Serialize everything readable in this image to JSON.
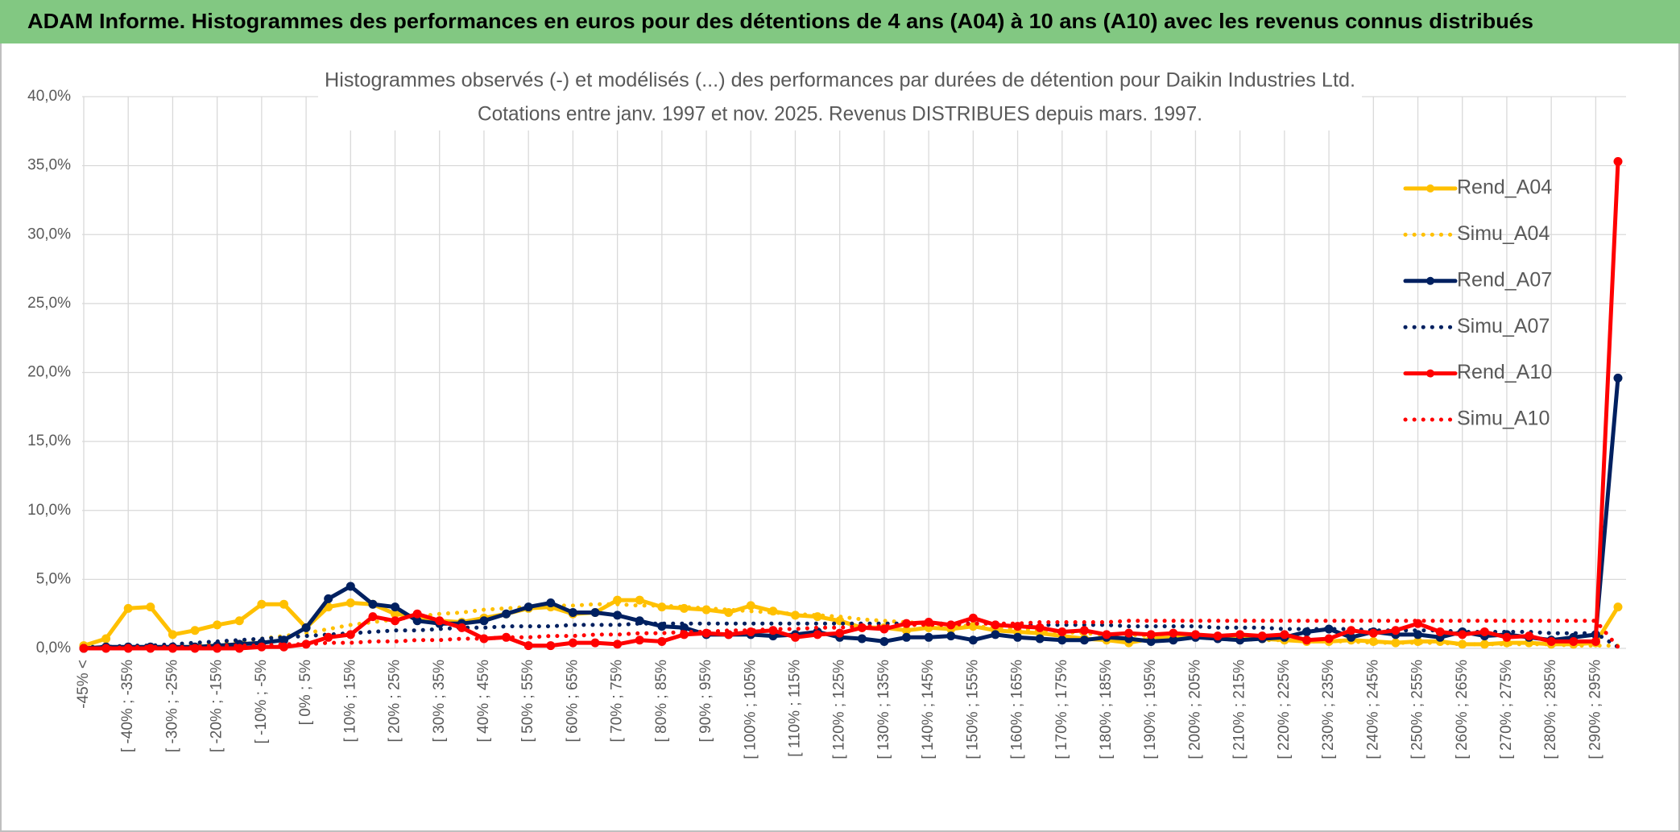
{
  "header": {
    "title": "ADAM Informe. Histogrammes des performances en euros pour des détentions de 4 ans (A04) à 10 ans (A10) avec les revenus connus distribués"
  },
  "chart_data": {
    "type": "line",
    "title": "Histogrammes observés (-) et modélisés (...) des performances par durées de détention pour Daikin Industries Ltd.",
    "subtitle": "Cotations entre janv. 1997 et nov. 2025. Revenus DISTRIBUES depuis mars. 1997.",
    "categories": [
      "-45% <",
      null,
      "[ -40% ; -35%",
      null,
      "[ -30% ; -25%",
      null,
      "[ -20% ; -15%",
      null,
      "[ -10% ; -5%",
      null,
      "[ 0% ; 5%",
      null,
      "[ 10% ; 15%",
      null,
      "[ 20% ; 25%",
      null,
      "[ 30% ; 35%",
      null,
      "[ 40% ; 45%",
      null,
      "[ 50% ; 55%",
      null,
      "[ 60% ; 65%",
      null,
      "[ 70% ; 75%",
      null,
      "[ 80% ; 85%",
      null,
      "[ 90% ; 95%",
      null,
      "[ 100% ; 105%",
      null,
      "[ 110% ; 115%",
      null,
      "[ 120% ; 125%",
      null,
      "[ 130% ; 135%",
      null,
      "[ 140% ; 145%",
      null,
      "[ 150% ; 155%",
      null,
      "[ 160% ; 165%",
      null,
      "[ 170% ; 175%",
      null,
      "[ 180% ; 185%",
      null,
      "[ 190% ; 195%",
      null,
      "[ 200% ; 205%",
      null,
      "[ 210% ; 215%",
      null,
      "[ 220% ; 225%",
      null,
      "[ 230% ; 235%",
      null,
      "[ 240% ; 245%",
      null,
      "[ 250% ; 255%",
      null,
      "[ 260% ; 265%",
      null,
      "[ 270% ; 275%",
      null,
      "[ 280% ; 285%",
      null,
      "[ 290% ; 295%",
      null
    ],
    "series": [
      {
        "name": "Rend_A04",
        "color": "#ffc000",
        "style": "solid",
        "values": [
          0.2,
          0.7,
          2.9,
          3.0,
          1.0,
          1.3,
          1.7,
          2.0,
          3.2,
          3.2,
          1.5,
          3.0,
          3.3,
          3.2,
          2.5,
          2.3,
          2.0,
          1.9,
          2.2,
          2.5,
          2.9,
          3.0,
          2.5,
          2.6,
          3.5,
          3.5,
          3.0,
          2.9,
          2.8,
          2.6,
          3.1,
          2.7,
          2.4,
          2.3,
          2.0,
          1.5,
          1.5,
          1.3,
          1.5,
          1.4,
          1.6,
          1.3,
          1.2,
          1.1,
          0.9,
          0.7,
          0.6,
          0.4,
          0.7,
          0.8,
          0.9,
          0.8,
          0.9,
          0.7,
          0.6,
          0.5,
          0.5,
          0.6,
          0.5,
          0.4,
          0.5,
          0.5,
          0.3,
          0.3,
          0.4,
          0.4,
          0.3,
          0.3,
          0.4,
          3.0
        ]
      },
      {
        "name": "Simu_A04",
        "color": "#ffc000",
        "style": "dotted",
        "values": [
          0.0,
          0.1,
          0.1,
          0.2,
          0.2,
          0.3,
          0.4,
          0.5,
          0.7,
          0.9,
          1.1,
          1.4,
          1.7,
          1.9,
          2.1,
          2.3,
          2.5,
          2.6,
          2.8,
          2.9,
          3.0,
          3.1,
          3.1,
          3.2,
          3.2,
          3.1,
          3.1,
          3.0,
          2.9,
          2.8,
          2.7,
          2.6,
          2.5,
          2.4,
          2.3,
          2.1,
          2.0,
          1.9,
          1.8,
          1.7,
          1.6,
          1.5,
          1.4,
          1.3,
          1.2,
          1.1,
          1.0,
          1.0,
          0.9,
          0.8,
          0.8,
          0.7,
          0.7,
          0.6,
          0.6,
          0.5,
          0.5,
          0.5,
          0.4,
          0.4,
          0.4,
          0.4,
          0.3,
          0.3,
          0.3,
          0.3,
          0.3,
          0.2,
          0.2,
          0.2
        ]
      },
      {
        "name": "Rend_A07",
        "color": "#002060",
        "style": "solid",
        "values": [
          0.0,
          0.1,
          0.1,
          0.1,
          0.1,
          0.1,
          0.2,
          0.3,
          0.4,
          0.6,
          1.5,
          3.6,
          4.5,
          3.2,
          3.0,
          2.0,
          1.8,
          1.8,
          2.0,
          2.5,
          3.0,
          3.3,
          2.6,
          2.6,
          2.4,
          2.0,
          1.6,
          1.5,
          1.0,
          1.0,
          1.0,
          0.9,
          1.0,
          1.2,
          0.8,
          0.7,
          0.5,
          0.8,
          0.8,
          0.9,
          0.6,
          1.0,
          0.8,
          0.7,
          0.6,
          0.6,
          0.8,
          0.7,
          0.5,
          0.6,
          0.8,
          0.7,
          0.6,
          0.7,
          0.8,
          1.2,
          1.4,
          0.8,
          1.2,
          1.0,
          1.0,
          0.8,
          1.2,
          0.9,
          1.0,
          0.8,
          0.6,
          0.8,
          1.0,
          19.6
        ]
      },
      {
        "name": "Simu_A07",
        "color": "#002060",
        "style": "dotted",
        "values": [
          0.1,
          0.1,
          0.2,
          0.2,
          0.3,
          0.4,
          0.5,
          0.6,
          0.7,
          0.8,
          0.9,
          1.0,
          1.1,
          1.2,
          1.3,
          1.3,
          1.4,
          1.5,
          1.5,
          1.6,
          1.6,
          1.6,
          1.7,
          1.7,
          1.7,
          1.8,
          1.8,
          1.8,
          1.8,
          1.8,
          1.8,
          1.8,
          1.8,
          1.8,
          1.8,
          1.8,
          1.8,
          1.8,
          1.8,
          1.8,
          1.8,
          1.8,
          1.7,
          1.7,
          1.7,
          1.7,
          1.7,
          1.6,
          1.6,
          1.6,
          1.6,
          1.5,
          1.5,
          1.5,
          1.4,
          1.4,
          1.4,
          1.4,
          1.3,
          1.3,
          1.3,
          1.3,
          1.2,
          1.2,
          1.2,
          1.2,
          1.1,
          1.1,
          1.1,
          0.1
        ]
      },
      {
        "name": "Rend_A10",
        "color": "#ff0000",
        "style": "solid",
        "values": [
          0.0,
          0.0,
          0.0,
          0.0,
          0.0,
          0.0,
          0.0,
          0.0,
          0.1,
          0.1,
          0.3,
          0.8,
          1.0,
          2.3,
          2.0,
          2.5,
          2.0,
          1.5,
          0.7,
          0.8,
          0.2,
          0.2,
          0.4,
          0.4,
          0.3,
          0.6,
          0.5,
          1.0,
          1.1,
          1.0,
          1.2,
          1.3,
          0.8,
          1.0,
          1.1,
          1.5,
          1.4,
          1.8,
          1.9,
          1.7,
          2.2,
          1.7,
          1.6,
          1.5,
          1.2,
          1.3,
          1.0,
          1.1,
          1.0,
          1.1,
          1.0,
          0.9,
          1.0,
          0.9,
          1.0,
          0.6,
          0.7,
          1.3,
          1.1,
          1.3,
          1.8,
          1.2,
          1.0,
          1.2,
          0.8,
          0.9,
          0.5,
          0.5,
          0.5,
          35.3
        ]
      },
      {
        "name": "Simu_A10",
        "color": "#ff0000",
        "style": "dotted",
        "values": [
          0.0,
          0.0,
          0.1,
          0.1,
          0.1,
          0.1,
          0.2,
          0.2,
          0.2,
          0.3,
          0.3,
          0.4,
          0.4,
          0.5,
          0.5,
          0.6,
          0.6,
          0.7,
          0.7,
          0.8,
          0.8,
          0.9,
          0.9,
          1.0,
          1.0,
          1.1,
          1.1,
          1.2,
          1.2,
          1.3,
          1.3,
          1.4,
          1.4,
          1.5,
          1.5,
          1.6,
          1.6,
          1.7,
          1.7,
          1.7,
          1.8,
          1.8,
          1.8,
          1.9,
          1.9,
          1.9,
          1.9,
          2.0,
          2.0,
          2.0,
          2.0,
          2.0,
          2.0,
          2.0,
          2.0,
          2.0,
          2.0,
          2.0,
          2.0,
          2.0,
          2.0,
          2.0,
          2.0,
          2.0,
          2.0,
          2.0,
          2.0,
          2.0,
          2.0,
          0.1
        ]
      }
    ],
    "ylim": [
      0,
      40
    ],
    "yticks": [
      {
        "value": 0,
        "label": "0,0%"
      },
      {
        "value": 5,
        "label": "5,0%"
      },
      {
        "value": 10,
        "label": "10,0%"
      },
      {
        "value": 15,
        "label": "15,0%"
      },
      {
        "value": 20,
        "label": "20,0%"
      },
      {
        "value": 25,
        "label": "25,0%"
      },
      {
        "value": 30,
        "label": "30,0%"
      },
      {
        "value": 35,
        "label": "35,0%"
      },
      {
        "value": 40,
        "label": "40,0%"
      }
    ],
    "grid": true,
    "legend": "right"
  }
}
